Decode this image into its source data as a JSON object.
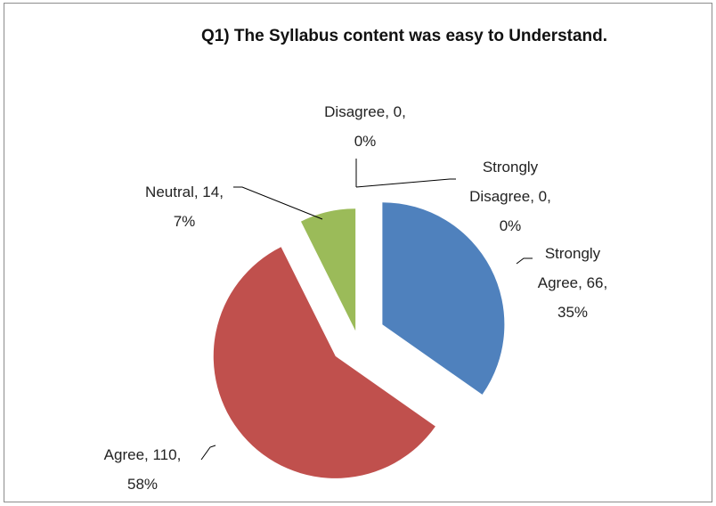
{
  "chart_data": {
    "type": "pie",
    "title": "Q1) The Syllabus content was easy to Understand.",
    "values": [
      66,
      110,
      14,
      0,
      0
    ],
    "value_labels": [
      "Strongly\nAgree, 66,\n35%",
      "Agree, 110,\n58%",
      "Neutral, 14,\n7%",
      "Disagree, 0,\n0%",
      "Strongly\nDisagree, 0,\n0%"
    ],
    "colors": [
      "#4f81bd",
      "#c0504d",
      "#9bbb59",
      "#8064a2",
      "#4bacc6"
    ]
  }
}
